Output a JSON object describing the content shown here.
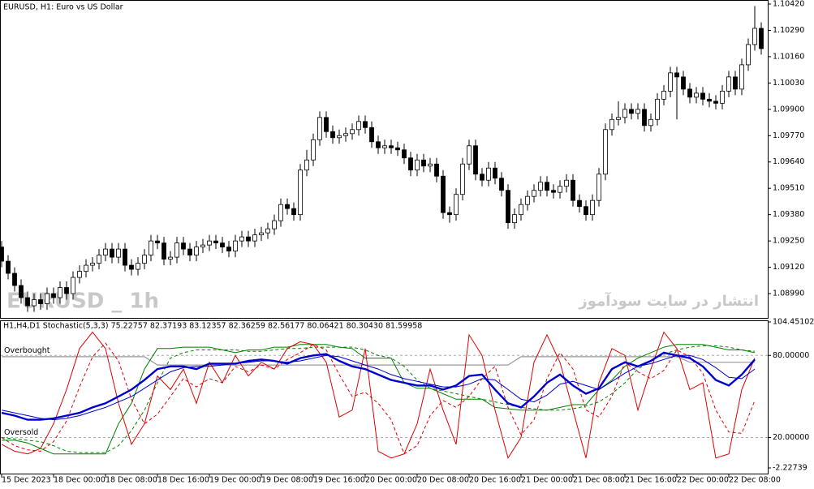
{
  "chart_data": [
    {
      "type": "candlestick",
      "title": "EURUSD, H1:  Euro vs US Dollar",
      "watermark": "EURUSD _ 1h",
      "watermark2": "انتشار در سایت سودآموز",
      "up_color": "#ffffff",
      "down_color": "#000000",
      "xlim": [
        0,
        117
      ],
      "ylim": [
        1.0887,
        1.1044
      ],
      "yticks": [
        {
          "value": 1.1042,
          "label": "1.10420"
        },
        {
          "value": 1.1029,
          "label": "1.10290"
        },
        {
          "value": 1.1016,
          "label": "1.10160"
        },
        {
          "value": 1.1003,
          "label": "1.10030"
        },
        {
          "value": 1.099,
          "label": "1.09900"
        },
        {
          "value": 1.0977,
          "label": "1.09770"
        },
        {
          "value": 1.0964,
          "label": "1.09640"
        },
        {
          "value": 1.0951,
          "label": "1.09510"
        },
        {
          "value": 1.0938,
          "label": "1.09380"
        },
        {
          "value": 1.0925,
          "label": "1.09250"
        },
        {
          "value": 1.0912,
          "label": "1.09120"
        },
        {
          "value": 1.0899,
          "label": "1.08990"
        }
      ],
      "open": [
        1.0922,
        1.0915,
        1.0909,
        1.0903,
        1.0897,
        1.0893,
        1.0896,
        1.0894,
        1.0899,
        1.0897,
        1.0902,
        1.0899,
        1.0907,
        1.091,
        1.0913,
        1.0914,
        1.0918,
        1.0921,
        1.0917,
        1.0921,
        1.0913,
        1.0911,
        1.0914,
        1.0918,
        1.0925,
        1.0924,
        1.0916,
        1.0917,
        1.0924,
        1.0921,
        1.0918,
        1.0922,
        1.0923,
        1.0925,
        1.0924,
        1.0922,
        1.092,
        1.0925,
        1.0927,
        1.0925,
        1.0928,
        1.0929,
        1.0931,
        1.0935,
        1.0943,
        1.0941,
        1.0938,
        1.096,
        1.0965,
        1.0975,
        1.0986,
        1.0979,
        1.0976,
        1.0977,
        1.0978,
        1.098,
        1.0984,
        1.0981,
        1.0974,
        1.0971,
        1.0972,
        1.0971,
        1.097,
        1.0966,
        1.096,
        1.0965,
        1.0962,
        1.0963,
        1.0957,
        1.0939,
        1.0938,
        1.0948,
        1.0963,
        1.0972,
        1.0958,
        1.0955,
        1.0961,
        1.0956,
        1.095,
        1.0934,
        1.0938,
        1.0943,
        1.0947,
        1.095,
        1.0954,
        1.095,
        1.0949,
        1.0952,
        1.0955,
        1.0945,
        1.0942,
        1.0938,
        1.0945,
        1.0958,
        1.098,
        1.0985,
        1.0986,
        1.099,
        1.0988,
        1.099,
        1.0982,
        1.0985,
        1.0995,
        1.0999,
        1.1008,
        1.1006,
        1.1,
        1.0996,
        1.0998,
        1.0995,
        1.0994,
        1.0993,
        1.0999,
        1.1006,
        1.1,
        1.1012,
        1.1022,
        1.103
      ],
      "high": [
        1.0925,
        1.0918,
        1.0912,
        1.0906,
        1.09,
        1.0899,
        1.0899,
        1.0902,
        1.0902,
        1.0905,
        1.0905,
        1.091,
        1.0913,
        1.0916,
        1.0917,
        1.0921,
        1.0924,
        1.0924,
        1.0924,
        1.0924,
        1.0916,
        1.0917,
        1.0921,
        1.0928,
        1.0928,
        1.0927,
        1.092,
        1.0927,
        1.0927,
        1.0924,
        1.0925,
        1.0926,
        1.0928,
        1.0928,
        1.0927,
        1.0925,
        1.0928,
        1.093,
        1.093,
        1.0931,
        1.0932,
        1.0934,
        1.0938,
        1.0946,
        1.0946,
        1.0944,
        1.0963,
        1.097,
        1.0978,
        1.0989,
        1.0989,
        1.0982,
        1.098,
        1.0981,
        1.0983,
        1.0987,
        1.0987,
        1.0984,
        1.0977,
        1.0975,
        1.0975,
        1.0974,
        1.0973,
        1.0969,
        1.0968,
        1.0968,
        1.0966,
        1.0966,
        1.096,
        1.0942,
        1.0951,
        1.0966,
        1.0975,
        1.0975,
        1.0961,
        1.0964,
        1.0964,
        1.0959,
        1.0953,
        1.0941,
        1.0946,
        1.095,
        1.0953,
        1.0957,
        1.0957,
        1.0953,
        1.0955,
        1.0958,
        1.0958,
        1.0948,
        1.0945,
        1.0948,
        1.0961,
        1.0983,
        1.0988,
        1.0994,
        1.0993,
        1.0993,
        1.0993,
        1.0993,
        1.0988,
        1.0998,
        1.1002,
        1.1011,
        1.1011,
        1.1009,
        1.1003,
        1.1001,
        1.1001,
        1.0998,
        1.0997,
        1.1002,
        1.1009,
        1.1009,
        1.1015,
        1.1025,
        1.1041,
        1.1033
      ],
      "low": [
        1.0912,
        1.0906,
        1.09,
        1.0894,
        1.089,
        1.089,
        1.0891,
        1.0891,
        1.0894,
        1.0894,
        1.0896,
        1.0896,
        1.0904,
        1.0907,
        1.091,
        1.0911,
        1.0915,
        1.0914,
        1.0914,
        1.091,
        1.0908,
        1.0908,
        1.0911,
        1.0915,
        1.0921,
        1.0913,
        1.0913,
        1.0914,
        1.0918,
        1.0915,
        1.0915,
        1.0919,
        1.092,
        1.0921,
        1.0919,
        1.0917,
        1.0917,
        1.0922,
        1.0922,
        1.0922,
        1.0925,
        1.0926,
        1.0928,
        1.0932,
        1.0938,
        1.0935,
        1.0935,
        1.0957,
        1.0962,
        1.0972,
        1.0976,
        1.0973,
        1.0973,
        1.0974,
        1.0975,
        1.0977,
        1.0978,
        1.0971,
        1.0968,
        1.0968,
        1.0968,
        1.0967,
        1.0963,
        1.0957,
        1.0957,
        1.0959,
        1.0959,
        1.0954,
        1.0936,
        1.0934,
        1.0935,
        1.0945,
        1.096,
        1.0955,
        1.0952,
        1.0952,
        1.0953,
        1.0947,
        1.0931,
        1.0931,
        1.0935,
        1.094,
        1.0944,
        1.0947,
        1.0947,
        1.0946,
        1.0946,
        1.0949,
        1.0942,
        1.0939,
        1.0935,
        1.0935,
        1.0942,
        1.0955,
        1.0977,
        1.0982,
        1.0983,
        1.0985,
        1.0985,
        1.0979,
        1.0979,
        1.0982,
        1.0992,
        1.0996,
        1.0985,
        1.0997,
        1.0993,
        1.0993,
        1.0992,
        1.0991,
        1.099,
        1.099,
        1.0996,
        1.0997,
        1.0997,
        1.1009,
        1.1019,
        1.1017
      ],
      "close": [
        1.0915,
        1.0909,
        1.0903,
        1.0897,
        1.0893,
        1.0896,
        1.0894,
        1.0899,
        1.0897,
        1.0902,
        1.0899,
        1.0907,
        1.091,
        1.0913,
        1.0914,
        1.0918,
        1.0921,
        1.0917,
        1.0921,
        1.0913,
        1.0911,
        1.0914,
        1.0918,
        1.0925,
        1.0924,
        1.0916,
        1.0917,
        1.0924,
        1.0921,
        1.0918,
        1.0922,
        1.0923,
        1.0925,
        1.0924,
        1.0922,
        1.092,
        1.0925,
        1.0927,
        1.0925,
        1.0928,
        1.0929,
        1.0931,
        1.0935,
        1.0943,
        1.0941,
        1.0938,
        1.096,
        1.0965,
        1.0975,
        1.0986,
        1.0979,
        1.0976,
        1.0977,
        1.0978,
        1.098,
        1.0984,
        1.0981,
        1.0974,
        1.0971,
        1.0972,
        1.0971,
        1.097,
        1.0966,
        1.096,
        1.0965,
        1.0962,
        1.0963,
        1.0957,
        1.0939,
        1.0938,
        1.0948,
        1.0963,
        1.0972,
        1.0958,
        1.0955,
        1.0961,
        1.0956,
        1.095,
        1.0934,
        1.0938,
        1.0943,
        1.0947,
        1.095,
        1.0954,
        1.095,
        1.0949,
        1.0952,
        1.0955,
        1.0945,
        1.0942,
        1.0938,
        1.0945,
        1.0958,
        1.098,
        1.0985,
        1.0986,
        1.099,
        1.0988,
        1.099,
        1.0982,
        1.0985,
        1.0995,
        1.0999,
        1.1008,
        1.1006,
        1.1,
        1.0996,
        1.0998,
        1.0995,
        1.0994,
        1.0993,
        1.0999,
        1.1006,
        1.1,
        1.1012,
        1.1022,
        1.103,
        1.102
      ]
    },
    {
      "type": "line",
      "title": "H1,H4,D1 Stochastic(5,3,3) 75.22757 82.37193 83.12357 82.36259 82.56177 80.06421 80.30430 81.59958",
      "xlim": [
        0,
        117
      ],
      "ylim": [
        -2.22739,
        104.45102
      ],
      "yticks": [
        104.45102,
        {
          "value": 80,
          "label": "80.00000"
        },
        {
          "value": 20,
          "label": "20.00000"
        },
        -2.22739
      ],
      "levels": [
        {
          "value": 80,
          "label": "Overbought"
        },
        {
          "value": 20,
          "label": "Oversold"
        }
      ],
      "xticks": [
        {
          "value": 0,
          "label": "15 Dec 2023"
        },
        {
          "value": 8,
          "label": "18 Dec 00:00"
        },
        {
          "value": 16,
          "label": "18 Dec 08:00"
        },
        {
          "value": 24,
          "label": "18 Dec 16:00"
        },
        {
          "value": 32,
          "label": "19 Dec 00:00"
        },
        {
          "value": 40,
          "label": "19 Dec 08:00"
        },
        {
          "value": 48,
          "label": "19 Dec 16:00"
        },
        {
          "value": 56,
          "label": "20 Dec 00:00"
        },
        {
          "value": 64,
          "label": "20 Dec 08:00"
        },
        {
          "value": 72,
          "label": "20 Dec 16:00"
        },
        {
          "value": 80,
          "label": "21 Dec 00:00"
        },
        {
          "value": 88,
          "label": "21 Dec 08:00"
        },
        {
          "value": 96,
          "label": "21 Dec 16:00"
        },
        {
          "value": 104,
          "label": "22 Dec 00:00"
        },
        {
          "value": 112,
          "label": "22 Dec 08:00"
        }
      ],
      "x": [
        0,
        2,
        4,
        6,
        8,
        10,
        12,
        14,
        16,
        18,
        20,
        22,
        24,
        26,
        28,
        30,
        32,
        34,
        36,
        38,
        40,
        42,
        44,
        46,
        48,
        50,
        52,
        54,
        56,
        58,
        60,
        62,
        64,
        66,
        68,
        70,
        72,
        74,
        76,
        78,
        80,
        82,
        84,
        86,
        88,
        90,
        92,
        94,
        96,
        98,
        100,
        102,
        104,
        106,
        108,
        110,
        112,
        114,
        116
      ],
      "series": [
        {
          "color": "#999999",
          "width": 1.2,
          "dashed": false,
          "values": [
            79,
            79,
            79,
            79,
            79,
            79,
            79,
            79,
            79,
            79,
            79,
            79,
            73,
            73,
            73,
            73,
            73,
            73,
            73,
            73,
            73,
            73,
            73,
            73,
            73,
            73,
            73,
            73,
            73,
            73,
            73,
            73,
            73,
            73,
            73,
            73,
            73,
            73,
            73,
            73,
            79,
            79,
            79,
            79,
            79,
            79,
            79,
            79,
            79,
            79,
            79,
            79,
            79,
            75,
            75,
            75,
            75,
            75,
            75
          ]
        },
        {
          "color": "#008000",
          "width": 1,
          "dashed": false,
          "values": [
            18,
            18,
            16,
            12,
            8,
            8,
            8,
            8,
            8,
            30,
            45,
            70,
            85,
            85,
            86,
            86,
            86,
            84,
            82,
            84,
            84,
            86,
            86,
            88,
            88,
            88,
            86,
            85,
            78,
            78,
            78,
            60,
            56,
            56,
            52,
            48,
            48,
            48,
            42,
            41,
            40,
            40,
            40,
            42,
            44,
            44,
            55,
            62,
            72,
            78,
            82,
            86,
            88,
            88,
            88,
            86,
            84,
            84,
            82
          ]
        },
        {
          "color": "#008000",
          "width": 1,
          "dashed": true,
          "values": [
            20,
            19,
            18,
            17,
            14,
            10,
            9,
            9,
            9,
            14,
            25,
            40,
            60,
            78,
            82,
            84,
            84,
            84,
            84,
            83,
            83,
            84,
            85,
            85,
            86,
            86,
            86,
            86,
            84,
            80,
            78,
            72,
            62,
            56,
            54,
            52,
            50,
            48,
            46,
            44,
            42,
            41,
            40,
            40,
            41,
            43,
            46,
            52,
            60,
            70,
            76,
            81,
            84,
            86,
            87,
            87,
            86,
            84,
            83
          ]
        },
        {
          "color": "#e00000",
          "width": 1,
          "dashed": false,
          "values": [
            15,
            10,
            8,
            12,
            30,
            55,
            85,
            97,
            85,
            45,
            15,
            30,
            65,
            55,
            70,
            45,
            75,
            60,
            80,
            65,
            75,
            70,
            85,
            90,
            88,
            75,
            35,
            40,
            85,
            10,
            5,
            8,
            30,
            70,
            40,
            15,
            95,
            80,
            40,
            5,
            20,
            75,
            95,
            75,
            40,
            5,
            60,
            85,
            80,
            40,
            70,
            97,
            85,
            55,
            60,
            5,
            8,
            55,
            78
          ]
        },
        {
          "color": "#e00000",
          "width": 1,
          "dashed": true,
          "values": [
            20,
            14,
            11,
            10,
            17,
            32,
            57,
            79,
            89,
            76,
            48,
            30,
            37,
            50,
            63,
            57,
            63,
            60,
            72,
            68,
            73,
            70,
            77,
            82,
            88,
            84,
            66,
            50,
            53,
            45,
            33,
            8,
            14,
            36,
            47,
            42,
            50,
            63,
            72,
            42,
            22,
            33,
            63,
            82,
            70,
            40,
            35,
            50,
            75,
            68,
            63,
            69,
            84,
            79,
            67,
            40,
            24,
            23,
            47
          ]
        },
        {
          "color": "#0000cc",
          "width": 1,
          "dashed": false,
          "values": [
            40,
            38,
            36,
            34,
            33,
            34,
            36,
            39,
            42,
            46,
            50,
            56,
            62,
            68,
            71,
            72,
            72,
            73,
            74,
            75,
            76,
            76,
            75,
            76,
            78,
            80,
            79,
            76,
            73,
            70,
            66,
            63,
            61,
            59,
            57,
            57,
            59,
            63,
            62,
            55,
            48,
            46,
            51,
            59,
            61,
            58,
            55,
            61,
            67,
            72,
            74,
            77,
            80,
            80,
            77,
            71,
            64,
            63,
            70
          ]
        },
        {
          "color": "#0000cc",
          "width": 2.4,
          "dashed": false,
          "values": [
            38,
            36,
            33,
            33,
            34,
            36,
            38,
            42,
            45,
            50,
            55,
            62,
            70,
            72,
            72,
            70,
            74,
            74,
            74,
            76,
            77,
            76,
            74,
            78,
            80,
            81,
            76,
            72,
            70,
            66,
            62,
            60,
            58,
            58,
            55,
            58,
            65,
            66,
            55,
            45,
            42,
            50,
            60,
            66,
            58,
            52,
            56,
            70,
            75,
            72,
            76,
            82,
            80,
            78,
            72,
            62,
            58,
            66,
            77
          ]
        }
      ]
    }
  ]
}
